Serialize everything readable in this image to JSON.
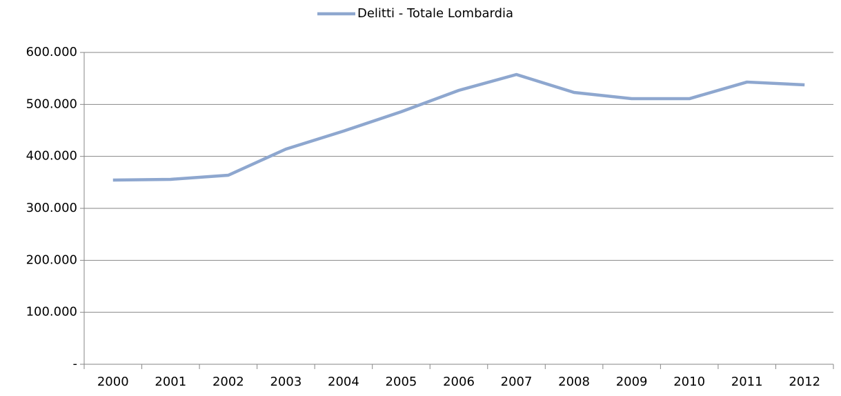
{
  "chart_data": {
    "type": "line",
    "categories": [
      "2000",
      "2001",
      "2002",
      "2003",
      "2004",
      "2005",
      "2006",
      "2007",
      "2008",
      "2009",
      "2010",
      "2011",
      "2012"
    ],
    "series": [
      {
        "name": "Delitti - Totale Lombardia",
        "color": "#8ea7cf",
        "values": [
          354400,
          355800,
          363700,
          414000,
          448700,
          485900,
          527000,
          557500,
          523000,
          511000,
          511000,
          543000,
          537600
        ]
      }
    ],
    "ylim": [
      0,
      600000
    ],
    "yticks": [
      {
        "value": 0,
        "label": "-"
      },
      {
        "value": 100000,
        "label": "100.000"
      },
      {
        "value": 200000,
        "label": "200.000"
      },
      {
        "value": 300000,
        "label": "300.000"
      },
      {
        "value": 400000,
        "label": "400.000"
      },
      {
        "value": 500000,
        "label": "500.000"
      },
      {
        "value": 600000,
        "label": "600.000"
      }
    ],
    "grid": true,
    "legend": "top"
  }
}
